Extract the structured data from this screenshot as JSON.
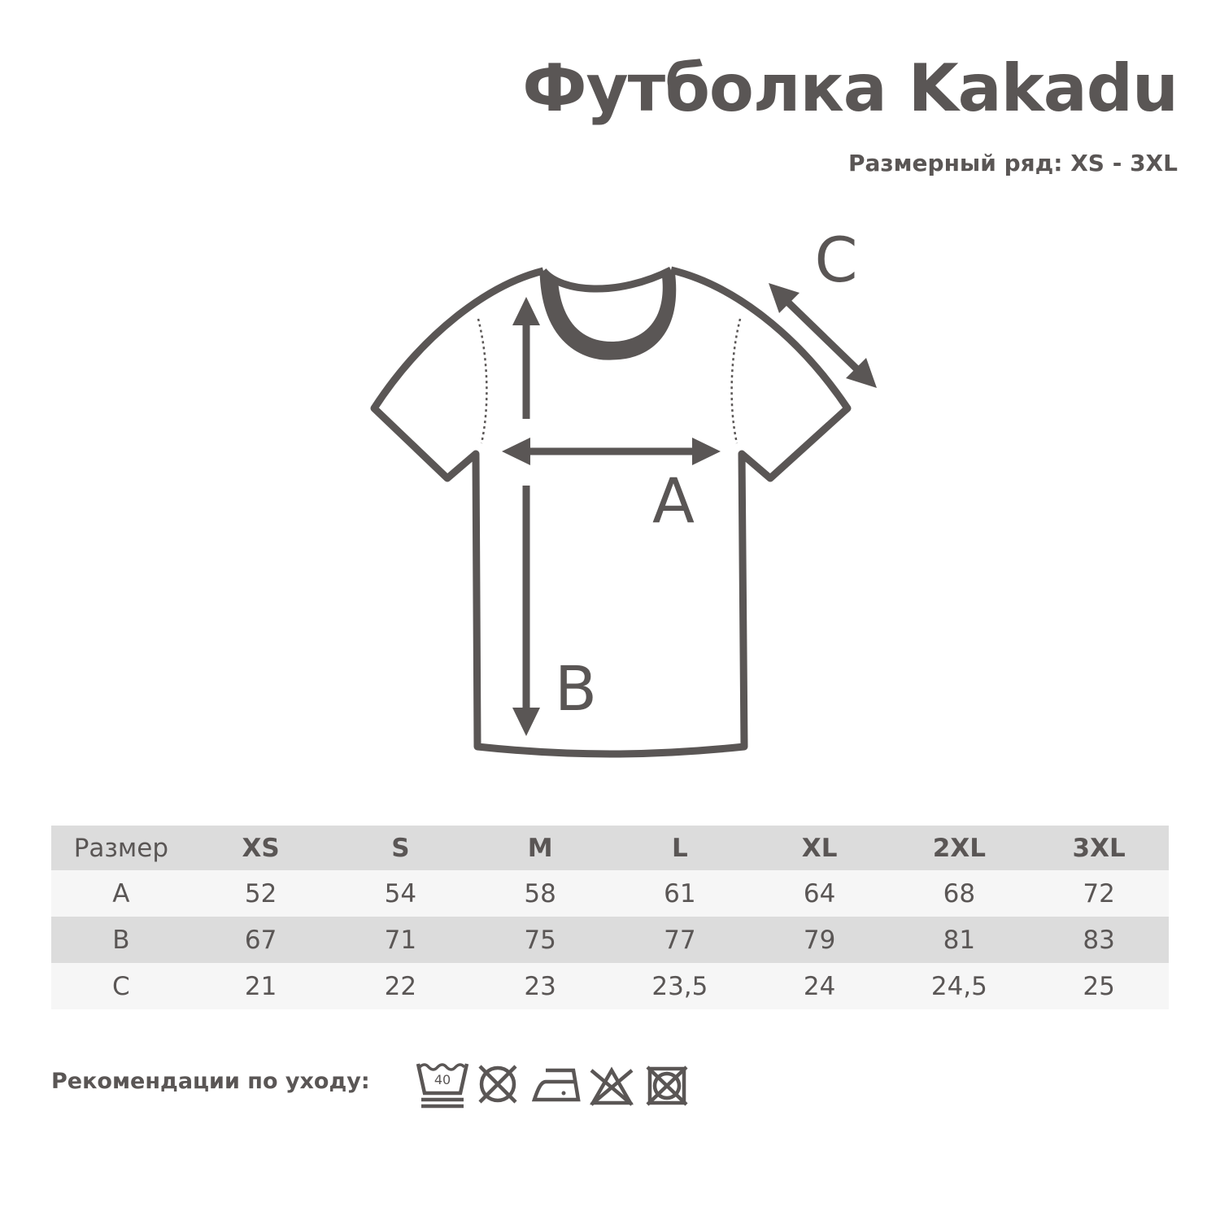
{
  "header": {
    "title": "Футболка Kakadu",
    "subtitle": "Размерный ряд: XS - 3XL"
  },
  "diagram": {
    "labels": {
      "a": "A",
      "b": "B",
      "c": "C"
    },
    "color": "#5a5655"
  },
  "table": {
    "headers": [
      "Размер",
      "XS",
      "S",
      "M",
      "L",
      "XL",
      "2XL",
      "3XL"
    ],
    "rows": [
      [
        "A",
        "52",
        "54",
        "58",
        "61",
        "64",
        "68",
        "72"
      ],
      [
        "B",
        "67",
        "71",
        "75",
        "77",
        "79",
        "81",
        "83"
      ],
      [
        "C",
        "21",
        "22",
        "23",
        "23,5",
        "24",
        "24,5",
        "25"
      ]
    ]
  },
  "care": {
    "label": "Рекомендации по уходу:",
    "icons": [
      "wash-40-gentle-icon",
      "no-bleach-icon",
      "iron-low-icon",
      "no-tumble-dry-icon",
      "no-dry-clean-icon"
    ],
    "wash_temp": "40"
  }
}
